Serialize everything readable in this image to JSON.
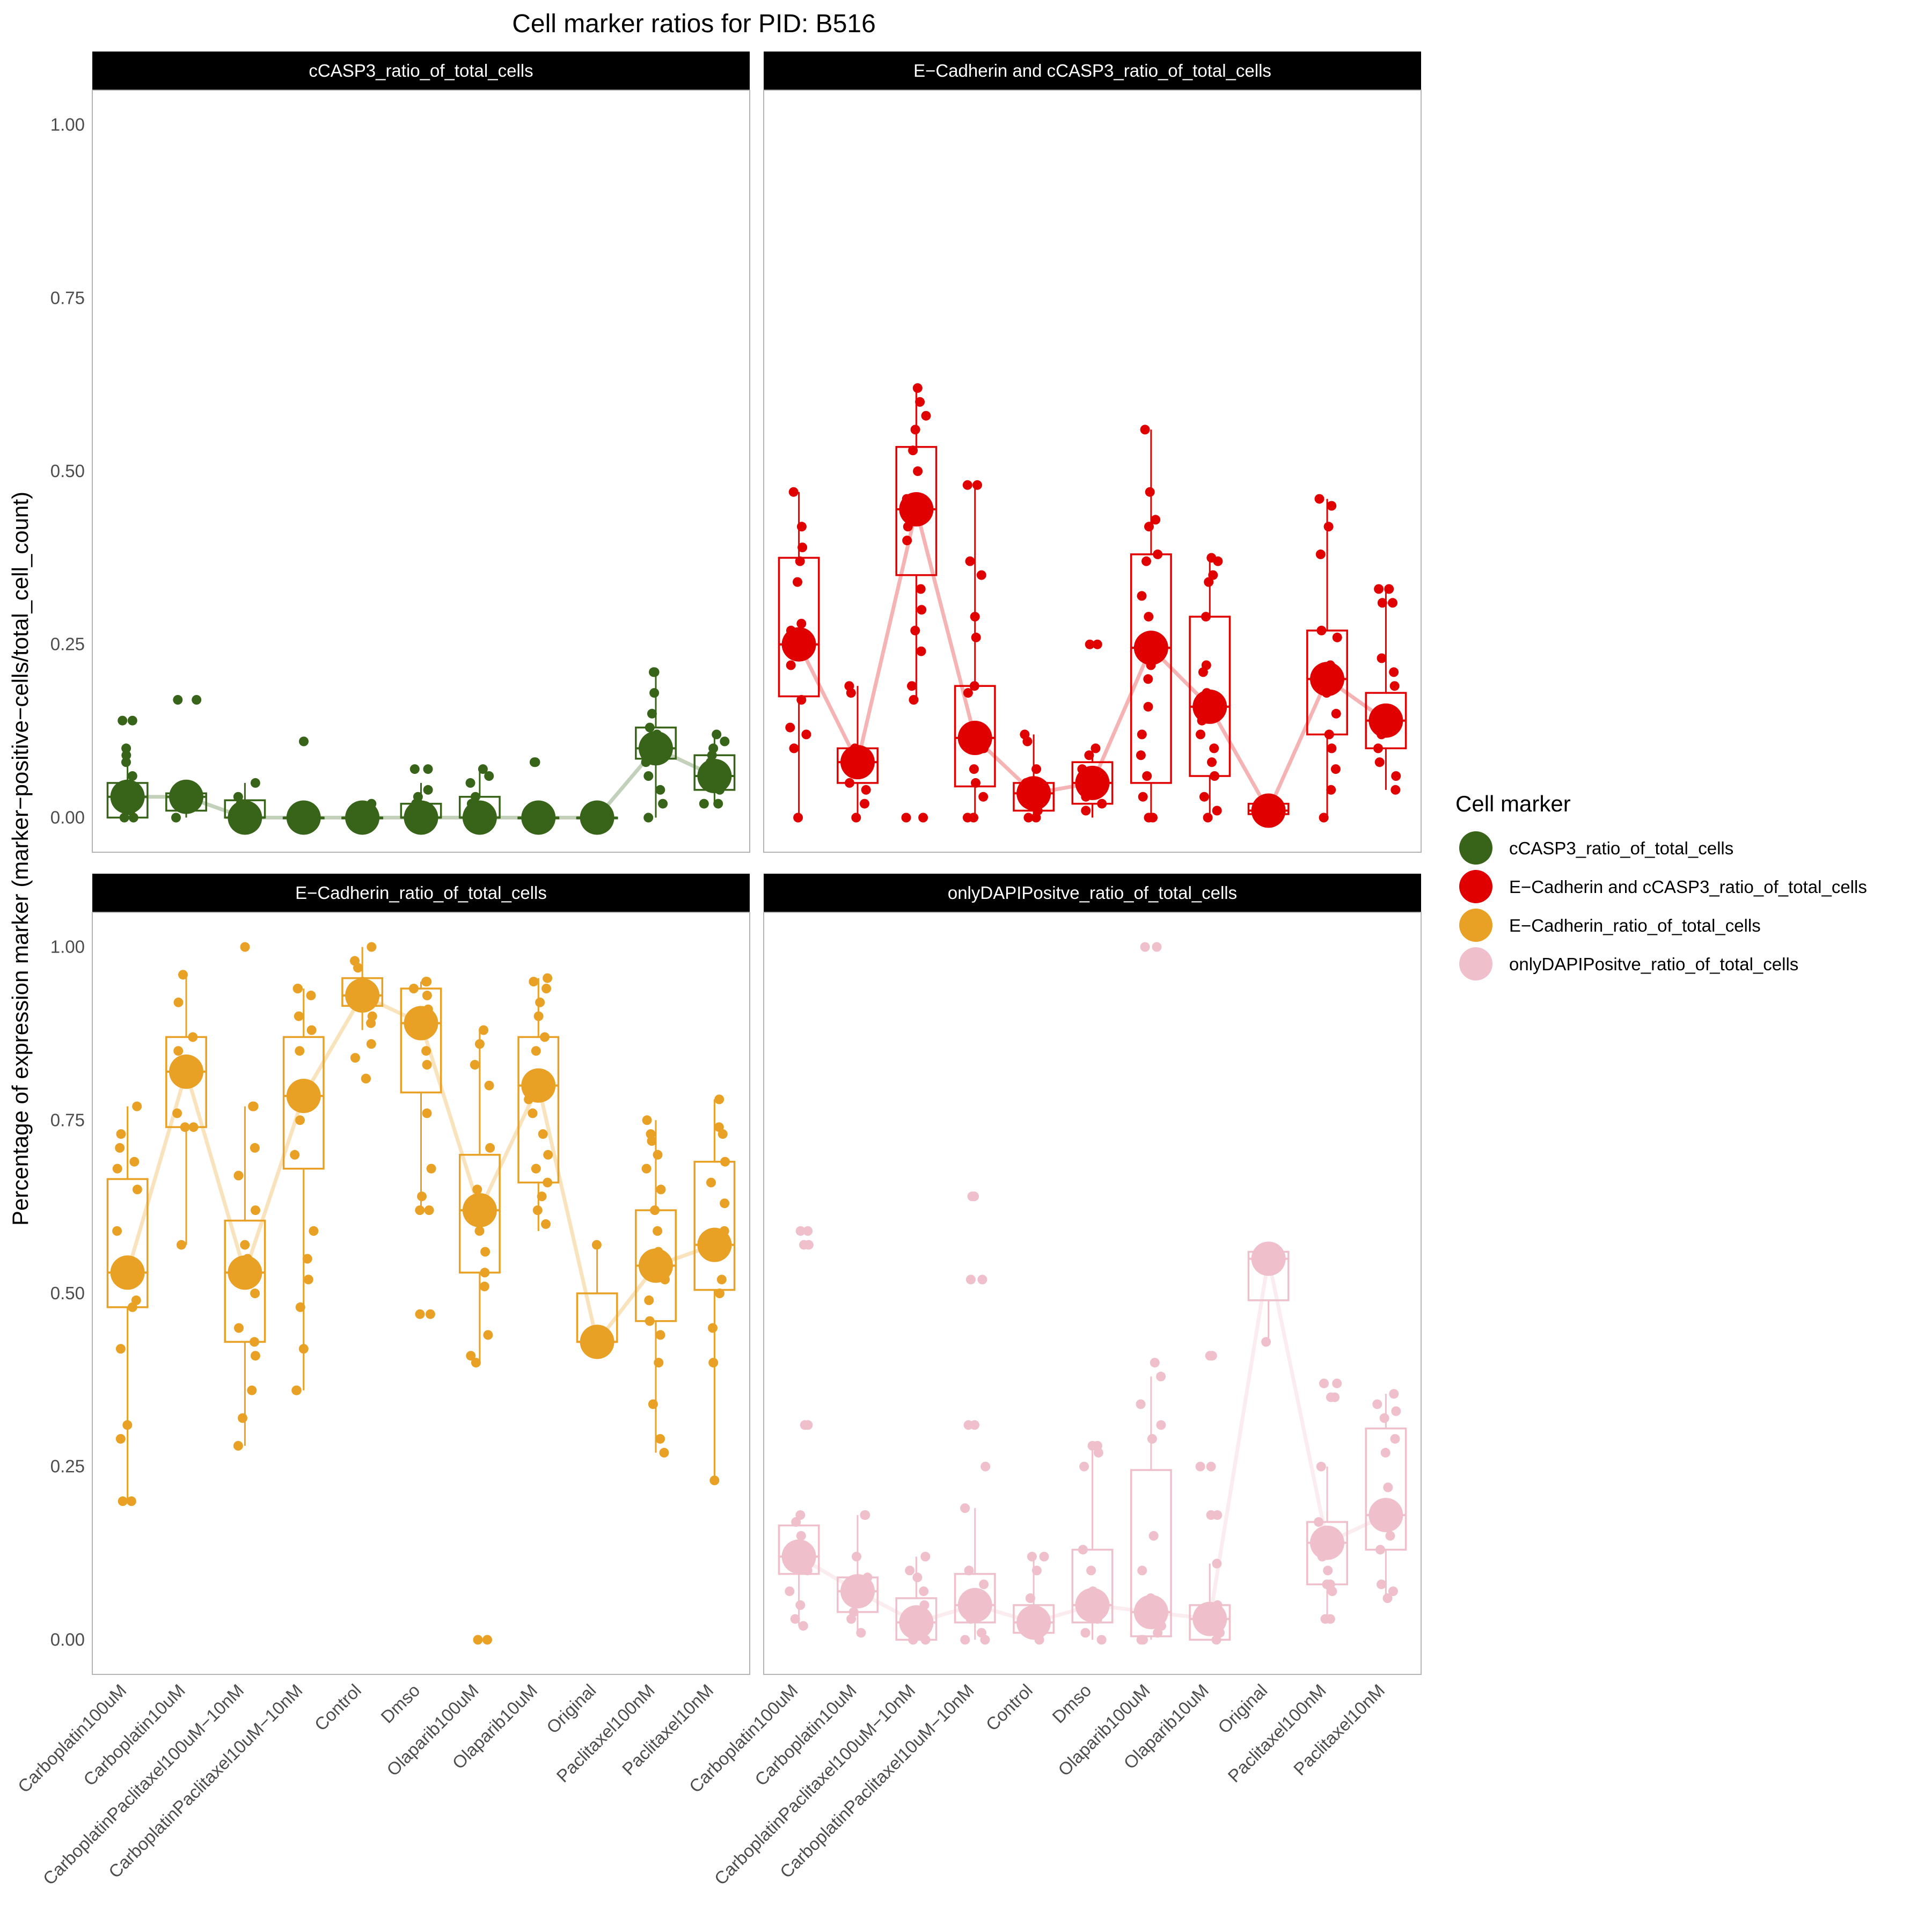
{
  "chart_data": {
    "type": "boxplot",
    "title": "Cell marker ratios for PID: B516",
    "xlabel": "",
    "ylabel": "Percentage of expression marker (marker−positive−cells/total_cell_count)",
    "ylim": [
      -0.05,
      1.05
    ],
    "yticks": [
      "0.00",
      "0.25",
      "0.50",
      "0.75",
      "1.00"
    ],
    "categories": [
      "Carboplatin100uM",
      "Carboplatin10uM",
      "CarboplatinPaclitaxel100uM−10nM",
      "CarboplatinPaclitaxel10uM−10nM",
      "Control",
      "Dmso",
      "Olaparib100uM",
      "Olaparib10uM",
      "Original",
      "Paclitaxel100nM",
      "Paclitaxel10nM"
    ],
    "legend": {
      "title": "Cell marker",
      "position": "right",
      "entries": [
        "cCASP3_ratio_of_total_cells",
        "E−Cadherin and cCASP3_ratio_of_total_cells",
        "E−Cadherin_ratio_of_total_cells",
        "onlyDAPIPositve_ratio_of_total_cells"
      ]
    },
    "panels": [
      {
        "name": "cCASP3_ratio_of_total_cells",
        "color": "#376418",
        "medians": [
          0.03,
          0.03,
          0.0,
          0.0,
          0.0,
          0.0,
          0.0,
          0.0,
          0.0,
          0.1,
          0.06
        ],
        "q1": [
          0.0,
          0.01,
          0.0,
          0.0,
          0.0,
          0.0,
          0.0,
          0.0,
          0.0,
          0.085,
          0.04
        ],
        "q3": [
          0.05,
          0.035,
          0.025,
          0.0,
          0.0,
          0.02,
          0.03,
          0.0,
          0.0,
          0.13,
          0.09
        ],
        "whisker_low": [
          0.0,
          0.0,
          0.0,
          0.0,
          0.0,
          0.0,
          0.0,
          0.0,
          0.0,
          0.0,
          0.02
        ],
        "whisker_high": [
          0.1,
          0.04,
          0.05,
          0.0,
          0.02,
          0.05,
          0.07,
          0.0,
          0.0,
          0.21,
          0.12
        ],
        "points": [
          [
            0.14,
            0.14,
            0.1,
            0.09,
            0.08,
            0.06,
            0.04,
            0.03,
            0.02,
            0.01,
            0.0,
            0.0
          ],
          [
            0.17,
            0.17,
            0.04,
            0.03,
            0.02,
            0.0
          ],
          [
            0.05,
            0.03,
            0.02,
            0.01,
            0.0,
            0.0
          ],
          [
            0.11,
            0.0,
            0.0,
            0.0
          ],
          [
            0.02,
            0.01,
            0.01,
            0.0,
            0.0,
            0.0
          ],
          [
            0.07,
            0.07,
            0.04,
            0.03,
            0.02,
            0.0,
            0.0
          ],
          [
            0.07,
            0.06,
            0.05,
            0.03,
            0.02,
            0.01,
            0.0,
            0.0
          ],
          [
            0.08,
            0.08,
            0.0,
            0.0
          ],
          [
            0.0,
            0.0
          ],
          [
            0.21,
            0.21,
            0.18,
            0.15,
            0.13,
            0.12,
            0.1,
            0.08,
            0.06,
            0.04,
            0.02,
            0.0
          ],
          [
            0.12,
            0.11,
            0.1,
            0.09,
            0.08,
            0.06,
            0.05,
            0.04,
            0.02,
            0.02
          ]
        ]
      },
      {
        "name": "E−Cadherin and cCASP3_ratio_of_total_cells",
        "color": "#e00000",
        "medians": [
          0.25,
          0.08,
          0.445,
          0.115,
          0.035,
          0.05,
          0.245,
          0.16,
          0.01,
          0.2,
          0.14
        ],
        "q1": [
          0.175,
          0.05,
          0.35,
          0.045,
          0.01,
          0.02,
          0.05,
          0.06,
          0.005,
          0.12,
          0.1
        ],
        "q3": [
          0.375,
          0.1,
          0.535,
          0.19,
          0.05,
          0.08,
          0.38,
          0.29,
          0.02,
          0.27,
          0.18
        ],
        "whisker_low": [
          0.0,
          0.0,
          0.17,
          0.0,
          0.0,
          0.0,
          0.0,
          0.0,
          0.005,
          0.0,
          0.04
        ],
        "whisker_high": [
          0.47,
          0.19,
          0.62,
          0.48,
          0.12,
          0.1,
          0.56,
          0.375,
          0.02,
          0.46,
          0.33
        ],
        "points": [
          [
            0.47,
            0.42,
            0.39,
            0.37,
            0.34,
            0.28,
            0.27,
            0.25,
            0.22,
            0.17,
            0.13,
            0.12,
            0.1,
            0.0
          ],
          [
            0.19,
            0.18,
            0.1,
            0.09,
            0.08,
            0.07,
            0.05,
            0.04,
            0.02,
            0.0
          ],
          [
            0.62,
            0.6,
            0.58,
            0.56,
            0.53,
            0.5,
            0.46,
            0.44,
            0.42,
            0.4,
            0.33,
            0.3,
            0.27,
            0.24,
            0.19,
            0.17,
            0.0,
            0.0
          ],
          [
            0.48,
            0.48,
            0.37,
            0.35,
            0.29,
            0.26,
            0.19,
            0.18,
            0.12,
            0.1,
            0.07,
            0.05,
            0.03,
            0.0,
            0.0
          ],
          [
            0.12,
            0.11,
            0.07,
            0.05,
            0.04,
            0.03,
            0.02,
            0.01,
            0.0,
            0.0
          ],
          [
            0.25,
            0.25,
            0.1,
            0.09,
            0.07,
            0.06,
            0.05,
            0.04,
            0.03,
            0.02,
            0.01
          ],
          [
            0.56,
            0.47,
            0.43,
            0.42,
            0.38,
            0.37,
            0.32,
            0.29,
            0.25,
            0.22,
            0.2,
            0.16,
            0.12,
            0.09,
            0.06,
            0.03,
            0.0,
            0.0
          ],
          [
            0.375,
            0.37,
            0.35,
            0.34,
            0.29,
            0.22,
            0.21,
            0.18,
            0.16,
            0.14,
            0.12,
            0.1,
            0.08,
            0.06,
            0.03,
            0.01,
            0.0
          ],
          [
            0.02,
            0.01
          ],
          [
            0.46,
            0.45,
            0.42,
            0.38,
            0.27,
            0.26,
            0.22,
            0.21,
            0.18,
            0.15,
            0.12,
            0.1,
            0.07,
            0.04,
            0.0
          ],
          [
            0.33,
            0.33,
            0.31,
            0.31,
            0.23,
            0.21,
            0.19,
            0.15,
            0.12,
            0.1,
            0.08,
            0.06,
            0.04
          ]
        ]
      },
      {
        "name": "E−Cadherin_ratio_of_total_cells",
        "color": "#e8a124",
        "medians": [
          0.53,
          0.82,
          0.53,
          0.785,
          0.93,
          0.89,
          0.62,
          0.8,
          0.43,
          0.54,
          0.57
        ],
        "q1": [
          0.48,
          0.74,
          0.43,
          0.68,
          0.915,
          0.79,
          0.53,
          0.66,
          0.43,
          0.46,
          0.505
        ],
        "q3": [
          0.665,
          0.87,
          0.605,
          0.87,
          0.955,
          0.94,
          0.7,
          0.87,
          0.5,
          0.62,
          0.69
        ],
        "whisker_low": [
          0.2,
          0.57,
          0.28,
          0.36,
          0.88,
          0.62,
          0.4,
          0.59,
          0.43,
          0.27,
          0.23
        ],
        "whisker_high": [
          0.77,
          0.96,
          0.77,
          0.94,
          1.0,
          0.95,
          0.88,
          0.955,
          0.57,
          0.75,
          0.78
        ],
        "points": [
          [
            0.77,
            0.73,
            0.71,
            0.69,
            0.68,
            0.65,
            0.59,
            0.49,
            0.48,
            0.42,
            0.31,
            0.29,
            0.2,
            0.2
          ],
          [
            0.96,
            0.92,
            0.87,
            0.85,
            0.83,
            0.81,
            0.76,
            0.74,
            0.74,
            0.57
          ],
          [
            1.0,
            0.77,
            0.77,
            0.71,
            0.67,
            0.62,
            0.57,
            0.55,
            0.5,
            0.45,
            0.43,
            0.41,
            0.36,
            0.32,
            0.28
          ],
          [
            0.94,
            0.94,
            0.93,
            0.9,
            0.88,
            0.85,
            0.8,
            0.75,
            0.7,
            0.59,
            0.55,
            0.52,
            0.48,
            0.42,
            0.36,
            0.36
          ],
          [
            1.0,
            0.98,
            0.97,
            0.95,
            0.94,
            0.92,
            0.9,
            0.89,
            0.86,
            0.84,
            0.81,
            0.81
          ],
          [
            0.95,
            0.95,
            0.94,
            0.93,
            0.91,
            0.89,
            0.85,
            0.83,
            0.76,
            0.68,
            0.64,
            0.62,
            0.62,
            0.47,
            0.47
          ],
          [
            0.88,
            0.86,
            0.83,
            0.8,
            0.71,
            0.65,
            0.62,
            0.59,
            0.56,
            0.53,
            0.51,
            0.44,
            0.41,
            0.4,
            0.0,
            0.0
          ],
          [
            0.955,
            0.95,
            0.94,
            0.92,
            0.9,
            0.87,
            0.85,
            0.8,
            0.78,
            0.76,
            0.73,
            0.7,
            0.68,
            0.66,
            0.64,
            0.62,
            0.6
          ],
          [
            0.57,
            0.43
          ],
          [
            0.75,
            0.73,
            0.72,
            0.7,
            0.68,
            0.65,
            0.62,
            0.59,
            0.56,
            0.52,
            0.49,
            0.46,
            0.44,
            0.4,
            0.34,
            0.29,
            0.27
          ],
          [
            0.78,
            0.74,
            0.73,
            0.69,
            0.66,
            0.63,
            0.59,
            0.56,
            0.52,
            0.5,
            0.45,
            0.4,
            0.23
          ]
        ]
      },
      {
        "name": "onlyDAPIPositve_ratio_of_total_cells",
        "color": "#efbfcb",
        "medians": [
          0.12,
          0.07,
          0.025,
          0.05,
          0.025,
          0.05,
          0.04,
          0.03,
          0.55,
          0.14,
          0.18
        ],
        "q1": [
          0.095,
          0.04,
          0.0,
          0.025,
          0.01,
          0.025,
          0.005,
          0.0,
          0.49,
          0.08,
          0.13
        ],
        "q3": [
          0.165,
          0.09,
          0.06,
          0.095,
          0.05,
          0.13,
          0.245,
          0.05,
          0.56,
          0.17,
          0.305
        ],
        "whisker_low": [
          0.02,
          0.01,
          0.0,
          0.0,
          0.0,
          0.0,
          0.0,
          0.0,
          0.43,
          0.03,
          0.06
        ],
        "whisker_high": [
          0.18,
          0.18,
          0.12,
          0.19,
          0.12,
          0.28,
          0.38,
          0.11,
          0.56,
          0.25,
          0.355
        ],
        "points": [
          [
            0.59,
            0.59,
            0.57,
            0.57,
            0.31,
            0.31,
            0.18,
            0.17,
            0.15,
            0.12,
            0.1,
            0.07,
            0.05,
            0.03,
            0.02
          ],
          [
            0.18,
            0.18,
            0.12,
            0.09,
            0.07,
            0.06,
            0.04,
            0.03,
            0.01
          ],
          [
            0.12,
            0.1,
            0.09,
            0.07,
            0.05,
            0.03,
            0.02,
            0.01,
            0.0,
            0.0
          ],
          [
            0.64,
            0.64,
            0.52,
            0.52,
            0.31,
            0.31,
            0.25,
            0.19,
            0.1,
            0.08,
            0.05,
            0.03,
            0.01,
            0.0,
            0.0
          ],
          [
            0.12,
            0.12,
            0.1,
            0.06,
            0.04,
            0.03,
            0.02,
            0.01,
            0.0
          ],
          [
            0.28,
            0.28,
            0.27,
            0.25,
            0.13,
            0.1,
            0.07,
            0.05,
            0.03,
            0.01,
            0.0
          ],
          [
            1.0,
            1.0,
            0.4,
            0.38,
            0.34,
            0.31,
            0.29,
            0.15,
            0.1,
            0.06,
            0.04,
            0.02,
            0.01,
            0.0,
            0.0
          ],
          [
            0.41,
            0.41,
            0.25,
            0.25,
            0.18,
            0.18,
            0.11,
            0.05,
            0.03,
            0.01,
            0.0
          ],
          [
            0.55,
            0.43
          ],
          [
            0.37,
            0.37,
            0.35,
            0.35,
            0.25,
            0.17,
            0.14,
            0.12,
            0.1,
            0.08,
            0.08,
            0.07,
            0.03,
            0.03
          ],
          [
            0.355,
            0.34,
            0.33,
            0.32,
            0.29,
            0.27,
            0.22,
            0.18,
            0.15,
            0.13,
            0.08,
            0.07,
            0.06
          ]
        ]
      }
    ]
  }
}
